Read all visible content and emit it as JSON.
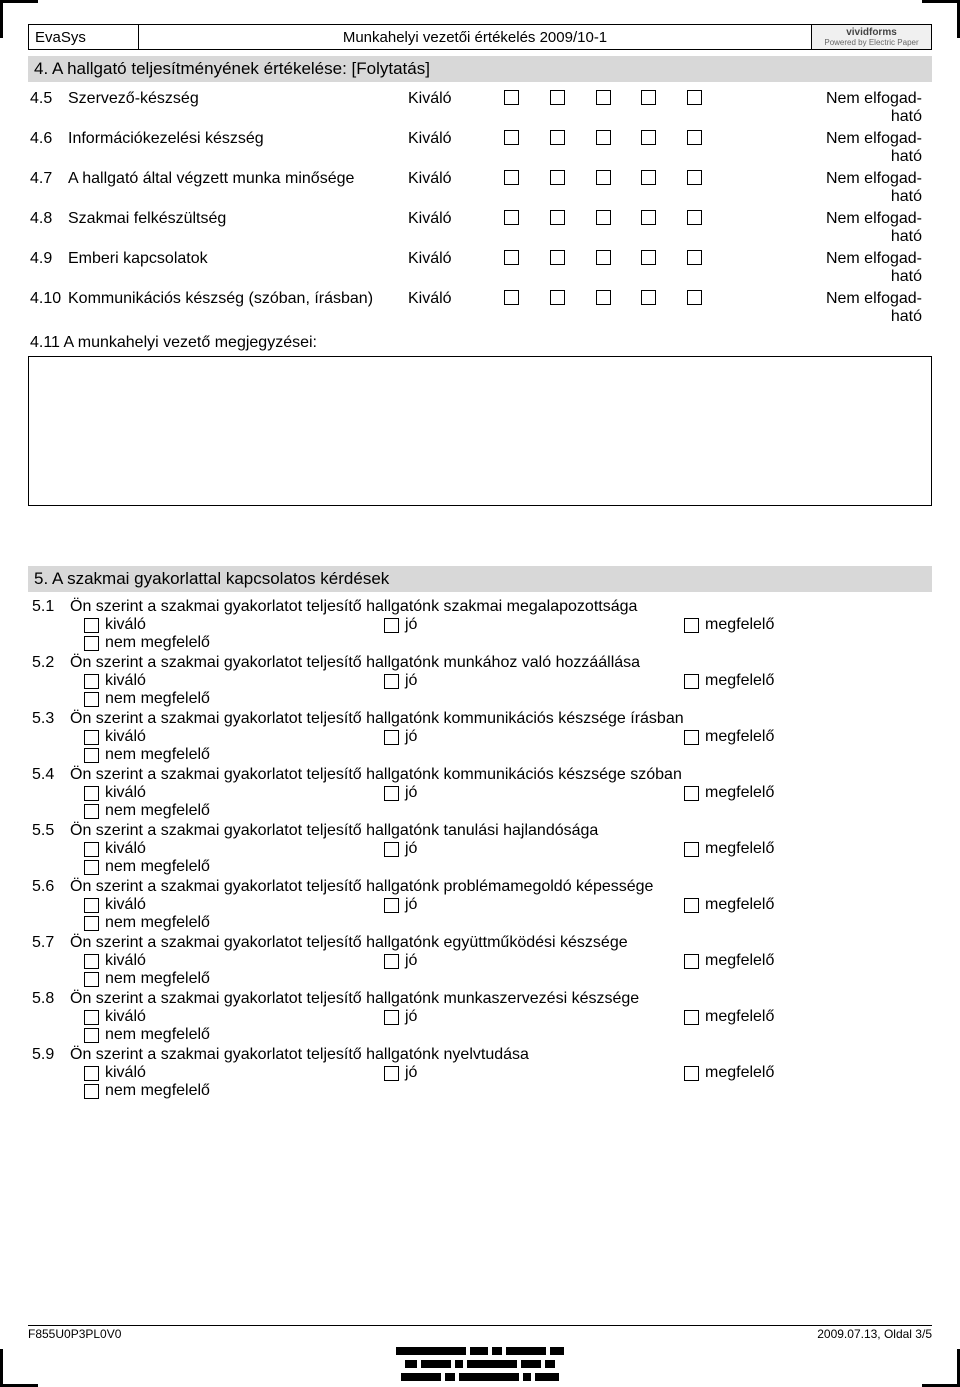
{
  "header": {
    "left": "EvaSys",
    "center": "Munkahelyi vezetői értékelés 2009/10-1",
    "logo_brand": "vividforms",
    "logo_sub": "Powered by Electric Paper"
  },
  "section4": {
    "title": "4. A hallgató teljesítményének értékelése:   [Folytatás]",
    "left_word": "Kiváló",
    "right_word": "Nem elfogadható",
    "box_count": 5,
    "rows": [
      {
        "num": "4.5",
        "label": "Szervező-készség"
      },
      {
        "num": "4.6",
        "label": "Információkezelési készség"
      },
      {
        "num": "4.7",
        "label": "A hallgató által végzett munka minősége"
      },
      {
        "num": "4.8",
        "label": "Szakmai felkészültség"
      },
      {
        "num": "4.9",
        "label": "Emberi kapcsolatok"
      },
      {
        "num": "4.10",
        "label": "Kommunikációs készség (szóban, írásban)"
      }
    ],
    "comment_label_num": "4.11",
    "comment_label_text": "A munkahelyi vezető megjegyzései:"
  },
  "section5": {
    "title": "5. A szakmai gyakorlattal kapcsolatos kérdések",
    "options": [
      "kiváló",
      "jó",
      "megfelelő",
      "nem megfelelő"
    ],
    "questions": [
      {
        "num": "5.1",
        "text": "Ön szerint a szakmai gyakorlatot teljesítő hallgatónk szakmai megalapozottsága"
      },
      {
        "num": "5.2",
        "text": "Ön szerint a szakmai gyakorlatot teljesítő hallgatónk munkához való hozzáállása"
      },
      {
        "num": "5.3",
        "text": "Ön szerint a szakmai gyakorlatot teljesítő hallgatónk kommunikációs készsége írásban"
      },
      {
        "num": "5.4",
        "text": "Ön szerint a szakmai gyakorlatot teljesítő hallgatónk kommunikációs készsége szóban"
      },
      {
        "num": "5.5",
        "text": "Ön szerint a szakmai gyakorlatot teljesítő hallgatónk tanulási hajlandósága"
      },
      {
        "num": "5.6",
        "text": "Ön szerint a szakmai gyakorlatot teljesítő hallgatónk problémamegoldó képessége"
      },
      {
        "num": "5.7",
        "text": "Ön szerint a szakmai gyakorlatot teljesítő hallgatónk együttműködési készsége"
      },
      {
        "num": "5.8",
        "text": "Ön szerint a szakmai gyakorlatot teljesítő hallgatónk munkaszervezési készsége"
      },
      {
        "num": "5.9",
        "text": "Ön szerint a szakmai gyakorlatot teljesítő hallgatónk nyelvtudása"
      }
    ]
  },
  "footer": {
    "left": "F855U0P3PL0V0",
    "right": "2009.07.13, Oldal 3/5"
  },
  "colors": {
    "section_bg": "#d8d8d8",
    "border": "#000000",
    "text": "#000000",
    "logo_bg": "#f0f0f0"
  }
}
